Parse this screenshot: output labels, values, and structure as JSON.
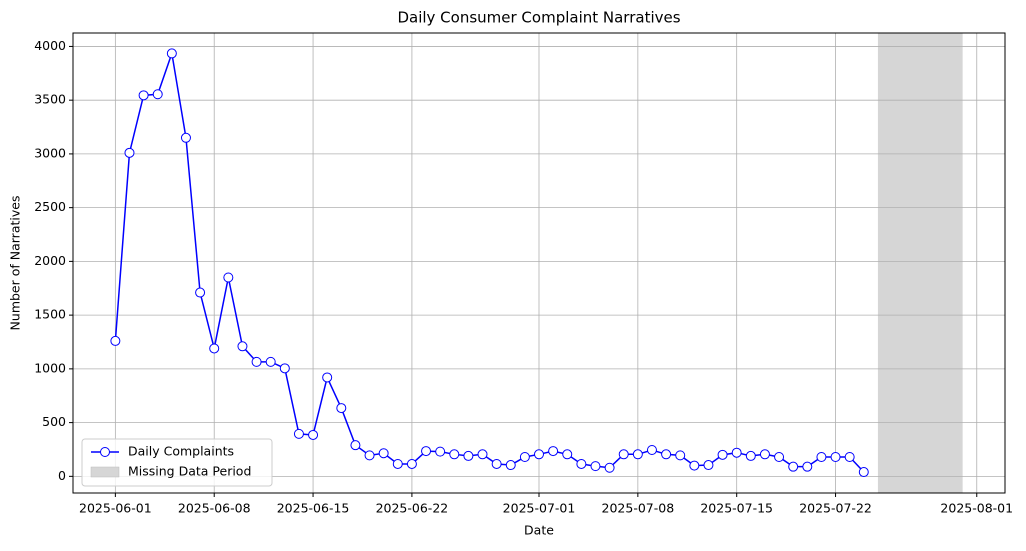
{
  "chart_data": {
    "type": "line",
    "title": "Daily Consumer Complaint Narratives",
    "x_label": "Date",
    "y_label": "Number of Narratives",
    "x": [
      "2025-06-01",
      "2025-06-02",
      "2025-06-03",
      "2025-06-04",
      "2025-06-05",
      "2025-06-06",
      "2025-06-07",
      "2025-06-08",
      "2025-06-09",
      "2025-06-10",
      "2025-06-11",
      "2025-06-12",
      "2025-06-13",
      "2025-06-14",
      "2025-06-15",
      "2025-06-16",
      "2025-06-17",
      "2025-06-18",
      "2025-06-19",
      "2025-06-20",
      "2025-06-21",
      "2025-06-22",
      "2025-06-23",
      "2025-06-24",
      "2025-06-25",
      "2025-06-26",
      "2025-06-27",
      "2025-06-28",
      "2025-06-29",
      "2025-06-30",
      "2025-07-01",
      "2025-07-02",
      "2025-07-03",
      "2025-07-04",
      "2025-07-05",
      "2025-07-06",
      "2025-07-07",
      "2025-07-08",
      "2025-07-09",
      "2025-07-10",
      "2025-07-11",
      "2025-07-12",
      "2025-07-13",
      "2025-07-14",
      "2025-07-15",
      "2025-07-16",
      "2025-07-17",
      "2025-07-18",
      "2025-07-19",
      "2025-07-20",
      "2025-07-21",
      "2025-07-22",
      "2025-07-23",
      "2025-07-24"
    ],
    "series": [
      {
        "name": "Daily Complaints",
        "color": "#0000ff",
        "marker_fill": "#ffffff",
        "values": [
          1260,
          3010,
          3545,
          3555,
          3935,
          3150,
          1710,
          1190,
          1850,
          1210,
          1065,
          1065,
          1005,
          395,
          385,
          920,
          635,
          290,
          195,
          215,
          115,
          115,
          235,
          230,
          205,
          190,
          205,
          115,
          105,
          180,
          205,
          235,
          205,
          115,
          95,
          80,
          205,
          205,
          245,
          205,
          195,
          100,
          105,
          200,
          220,
          190,
          205,
          180,
          90,
          90,
          180,
          180,
          180,
          40
        ]
      }
    ],
    "span": {
      "label": "Missing Data Period",
      "start": "2025-07-25",
      "end": "2025-07-31",
      "color": "#d6d6d6"
    },
    "xlim": [
      "2025-05-29",
      "2025-08-03"
    ],
    "xticks": [
      "2025-06-01",
      "2025-06-08",
      "2025-06-15",
      "2025-06-22",
      "2025-07-01",
      "2025-07-08",
      "2025-07-15",
      "2025-07-22",
      "2025-08-01"
    ],
    "ylim": [
      -155,
      4125
    ],
    "yticks": [
      0,
      500,
      1000,
      1500,
      2000,
      2500,
      3000,
      3500,
      4000
    ],
    "grid": true,
    "legend": "lower left"
  }
}
